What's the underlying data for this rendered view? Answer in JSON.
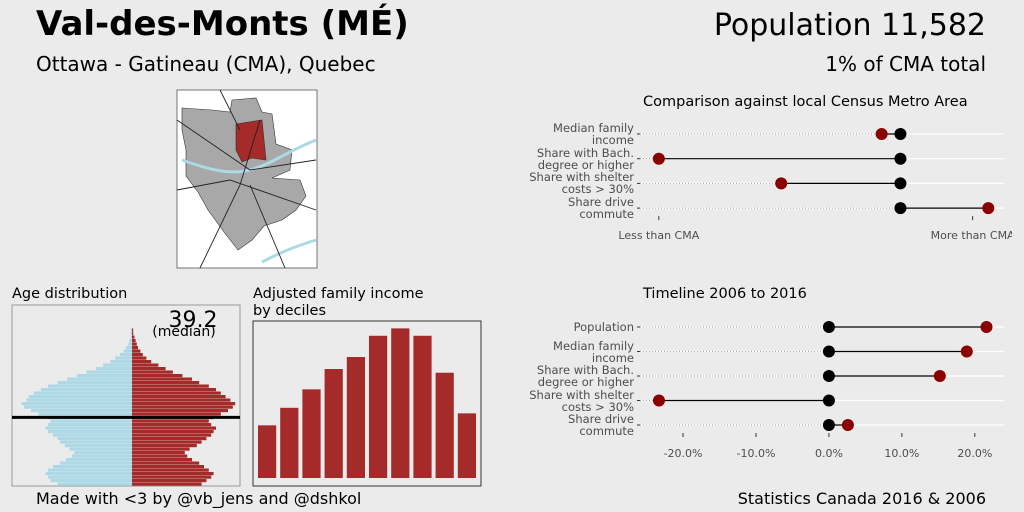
{
  "header": {
    "title": "Val-des-Monts (MÉ)",
    "subtitle": "Ottawa - Gatineau (CMA), Quebec",
    "population": "Population 11,582",
    "share": "1% of CMA total"
  },
  "footer": {
    "credit": "Made with <3 by @vb_jens and @dshkol",
    "source": "Statistics Canada 2016 & 2006"
  },
  "chart_data": [
    {
      "type": "dot",
      "title": "Comparison against local Census Metro Area",
      "categories": [
        "Median family\nincome",
        "Share with Bach.\ndegree or higher",
        "Share with shelter\ncosts > 30%",
        "Share drive\ncommute"
      ],
      "series": [
        {
          "color": "#000000",
          "values": [
            0.77,
            0.77,
            0.77,
            0.77
          ]
        },
        {
          "color": "#8b0000",
          "values": [
            0.71,
            0.0,
            0.39,
            1.05
          ]
        }
      ],
      "xlim": [
        -0.06,
        1.1
      ],
      "xticks": [
        {
          "value": 0,
          "label": "Less than CMA"
        },
        {
          "value": 1,
          "label": "More than CMA"
        }
      ]
    },
    {
      "type": "dot",
      "title": "Timeline 2006 to 2016",
      "categories": [
        "Population",
        "Median family\nincome",
        "Share with Bach.\ndegree or higher",
        "Share with shelter\ncosts > 30%",
        "Share drive\ncommute"
      ],
      "series": [
        {
          "color": "#000000",
          "values": [
            0,
            0,
            0,
            0,
            0
          ]
        },
        {
          "color": "#8b0000",
          "values": [
            21.6,
            18.9,
            15.2,
            -23.3,
            2.6
          ]
        }
      ],
      "xlim": [
        -25.9,
        24
      ],
      "xticks": [
        {
          "value": -20,
          "label": "-20.0%"
        },
        {
          "value": -10,
          "label": "-10.0%"
        },
        {
          "value": 0,
          "label": "0.0%"
        },
        {
          "value": 10,
          "label": "10.0%"
        },
        {
          "value": 20,
          "label": "20.0%"
        }
      ]
    },
    {
      "type": "pyramid",
      "title": "Age distribution",
      "median": 39.2,
      "median_label": "(median)",
      "y": [
        0,
        2,
        4,
        6,
        8,
        10,
        12,
        14,
        16,
        18,
        20,
        22,
        24,
        26,
        28,
        30,
        32,
        34,
        36,
        38,
        40,
        42,
        44,
        46,
        48,
        50,
        52,
        54,
        56,
        58,
        60,
        62,
        64,
        66,
        68,
        70,
        72,
        74,
        76,
        78,
        80,
        82,
        84,
        86,
        88
      ],
      "series": [
        {
          "color": "#add8e6",
          "values": [
            -0.62,
            -0.68,
            -0.7,
            -0.72,
            -0.7,
            -0.66,
            -0.6,
            -0.55,
            -0.5,
            -0.48,
            -0.52,
            -0.56,
            -0.6,
            -0.62,
            -0.66,
            -0.7,
            -0.72,
            -0.7,
            -0.68,
            -0.72,
            -0.78,
            -0.84,
            -0.9,
            -0.92,
            -0.88,
            -0.86,
            -0.82,
            -0.76,
            -0.7,
            -0.62,
            -0.54,
            -0.46,
            -0.38,
            -0.3,
            -0.24,
            -0.18,
            -0.14,
            -0.1,
            -0.07,
            -0.05,
            -0.03,
            -0.02,
            -0.01,
            -0.01,
            -0.01
          ]
        },
        {
          "color": "#a52a2a",
          "values": [
            0.58,
            0.62,
            0.66,
            0.68,
            0.64,
            0.6,
            0.56,
            0.5,
            0.46,
            0.44,
            0.48,
            0.54,
            0.58,
            0.62,
            0.66,
            0.68,
            0.7,
            0.66,
            0.64,
            0.68,
            0.74,
            0.8,
            0.84,
            0.86,
            0.82,
            0.78,
            0.74,
            0.7,
            0.64,
            0.56,
            0.5,
            0.42,
            0.34,
            0.28,
            0.22,
            0.16,
            0.12,
            0.09,
            0.07,
            0.05,
            0.04,
            0.03,
            0.02,
            0.01,
            0.01
          ]
        }
      ],
      "xlim": [
        -1.0,
        0.9
      ],
      "ylim": [
        0,
        100
      ]
    },
    {
      "type": "bar",
      "title": "Adjusted family income\nby deciles",
      "color": "#a52a2a",
      "values": [
        57,
        76,
        96,
        118,
        131,
        154,
        162,
        154,
        114,
        70
      ],
      "ylim": [
        0,
        170
      ]
    }
  ]
}
